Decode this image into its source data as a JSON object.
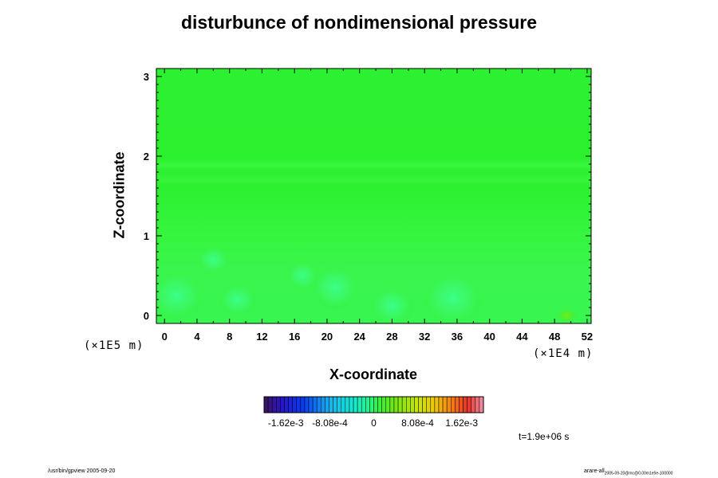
{
  "chart_data": {
    "type": "heatmap",
    "title": "disturbunce of nondimensional pressure",
    "xlabel": "X-coordinate",
    "ylabel": "Z-coordinate",
    "x_ticks": [
      "0",
      "4",
      "8",
      "12",
      "16",
      "20",
      "24",
      "28",
      "32",
      "36",
      "40",
      "44",
      "48",
      "52"
    ],
    "y_ticks": [
      "0",
      "1",
      "2",
      "3"
    ],
    "xlim": [
      -1,
      52.5
    ],
    "ylim": [
      -0.1,
      3.1
    ],
    "x_unit": "(×1E4 m)",
    "y_unit": "(×1E5 m)",
    "colorbar": {
      "tick_labels": [
        "-1.62e-3",
        "-8.08e-4",
        "0",
        "8.08e-4",
        "1.62e-3"
      ],
      "tick_values": [
        -0.00162,
        -0.000808,
        0,
        0.000808,
        0.00162
      ],
      "range": [
        -0.00202,
        0.00202
      ]
    },
    "field_description_values": {
      "background_value": 0.0,
      "local_minima": [
        {
          "x": 1.5,
          "z": 0.25,
          "value": -0.0003
        },
        {
          "x": 9.0,
          "z": 0.2,
          "value": -0.00015
        },
        {
          "x": 21.0,
          "z": 0.35,
          "value": -0.00025
        },
        {
          "x": 28.0,
          "z": 0.12,
          "value": -0.0002
        },
        {
          "x": 35.5,
          "z": 0.22,
          "value": -0.00035
        },
        {
          "x": 6.0,
          "z": 0.7,
          "value": -0.0001
        },
        {
          "x": 17.0,
          "z": 0.5,
          "value": -0.0001
        }
      ],
      "local_maxima": [
        {
          "x": 49.5,
          "z": 0.0,
          "value": 0.0002
        }
      ]
    }
  },
  "annotations": {
    "time": "t=1.9e+06 s",
    "footer_left": "/usr/bin/gpview 2005-09-20",
    "footer_right_main": "arare-all",
    "footer_right_sub": "2005-09-20@mc@0.00m1e5e-100000"
  }
}
